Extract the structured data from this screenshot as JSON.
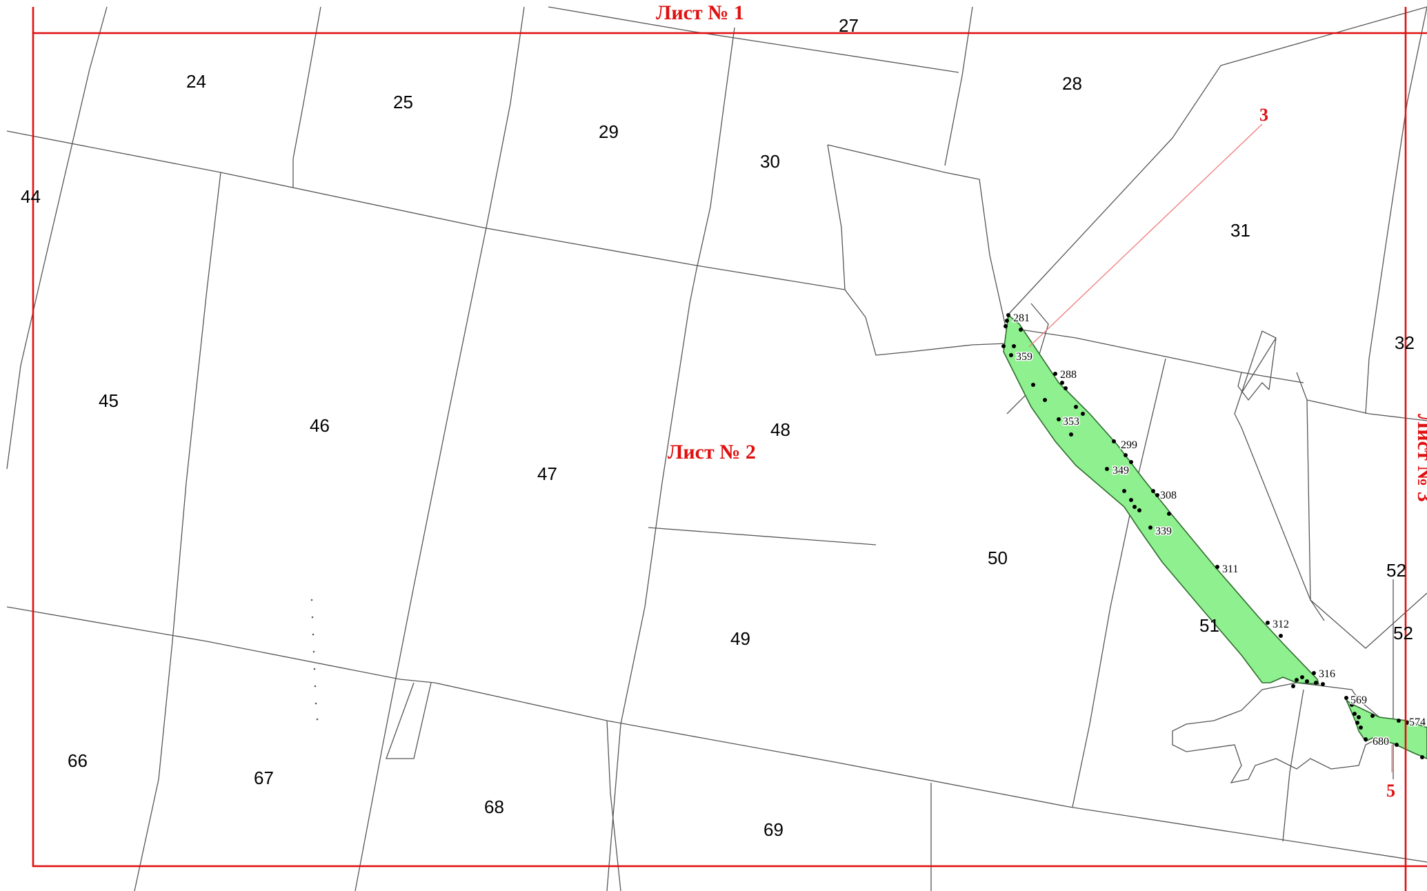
{
  "sheets": {
    "sheet1": "Лист № 1",
    "sheet2": "Лист № 2",
    "sheet3": "Лист № 3"
  },
  "callouts": [
    "3",
    "5"
  ],
  "parcels": [
    "24",
    "25",
    "27",
    "28",
    "29",
    "30",
    "31",
    "32",
    "44",
    "45",
    "46",
    "47",
    "48",
    "49",
    "50",
    "51",
    "52",
    "52",
    "66",
    "67",
    "68",
    "69"
  ],
  "vertices": [
    "281",
    "359",
    "288",
    "353",
    "299",
    "349",
    "308",
    "339",
    "311",
    "312",
    "316",
    "569",
    "574",
    "680"
  ],
  "colors": {
    "frame": "#e01010",
    "corridor": "#8ff08f",
    "parcel_line": "#555555"
  }
}
